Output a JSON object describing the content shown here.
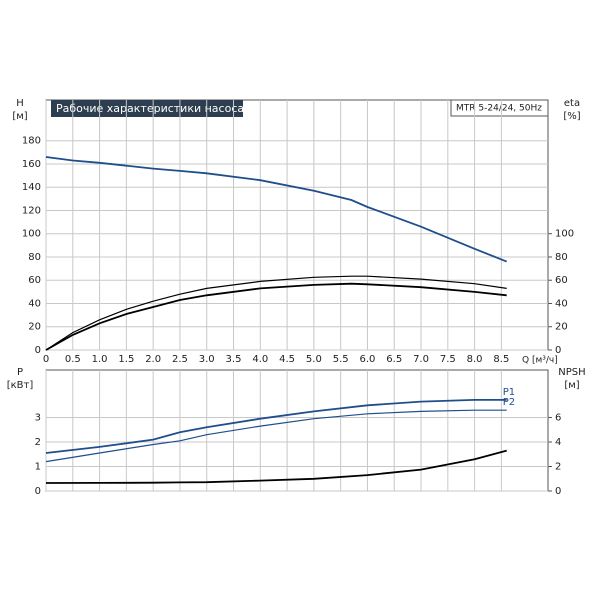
{
  "chart_data": [
    {
      "type": "line",
      "title": "Рабочие характеристики насоса",
      "annotation": "MTR 5-24/24, 50Hz",
      "y_label": "H",
      "y_unit": "[м]",
      "y2_label": "eta",
      "y2_unit": "[%]",
      "x_label": "Q [м³/ч]",
      "x": [
        0,
        0.5,
        1,
        1.5,
        2,
        2.5,
        3,
        4,
        5,
        5.7,
        6,
        7,
        8,
        8.6
      ],
      "xlim": [
        0,
        9.37
      ],
      "xticks": [
        0,
        0.5,
        {
          "value": 1,
          "label": "1.0"
        },
        1.5,
        {
          "value": 2,
          "label": "2.0"
        },
        2.5,
        {
          "value": 3,
          "label": "3.0"
        },
        3.5,
        {
          "value": 4,
          "label": "4.0"
        },
        4.5,
        {
          "value": 5,
          "label": "5.0"
        },
        5.5,
        {
          "value": 6,
          "label": "6.0"
        },
        6.5,
        {
          "value": 7,
          "label": "7.0"
        },
        7.5,
        {
          "value": 8,
          "label": "8.0"
        },
        8.5
      ],
      "ylim": [
        0,
        215
      ],
      "yticks": [
        0,
        20,
        40,
        60,
        80,
        100,
        120,
        140,
        160,
        180
      ],
      "y2lim": [
        0,
        215
      ],
      "y2ticks": [
        0,
        20,
        40,
        60,
        80,
        100
      ],
      "grid": true,
      "series": [
        {
          "color": "#1f4e8c",
          "values": [
            166,
            163,
            161,
            158.5,
            156,
            154,
            152,
            146,
            137,
            129,
            123,
            106,
            87,
            76
          ]
        },
        {
          "color": "#000000",
          "axis": "y2",
          "values": [
            0,
            15,
            26,
            35,
            42,
            48,
            53,
            59,
            62.5,
            63.5,
            63.5,
            61,
            57,
            53
          ]
        },
        {
          "color": "#000000",
          "axis": "y2",
          "values": [
            0,
            13,
            23,
            31,
            37,
            43,
            47,
            53,
            56,
            57,
            56.5,
            54,
            50,
            47
          ]
        }
      ]
    },
    {
      "type": "line",
      "y_label": "P",
      "y_unit": "[кВт]",
      "y2_label": "NPSH",
      "y2_unit": "[м]",
      "x": [
        0,
        1,
        2,
        2.5,
        3,
        4,
        5,
        6,
        7,
        8,
        8.6
      ],
      "xlim": [
        0,
        9.37
      ],
      "xticks": [
        0,
        0.5,
        1,
        1.5,
        2,
        2.5,
        3,
        3.5,
        4,
        4.5,
        5,
        5.5,
        6,
        6.5,
        7,
        7.5,
        8,
        8.5
      ],
      "show_xtick_labels": false,
      "ylim": [
        0,
        4.94
      ],
      "yticks": [
        0,
        1,
        2,
        3
      ],
      "y2lim": [
        0,
        9.88
      ],
      "y2ticks": [
        0,
        2,
        4,
        6
      ],
      "grid": true,
      "series": [
        {
          "name": "P1",
          "color": "#1f4e8c",
          "values": [
            1.55,
            1.8,
            2.1,
            2.4,
            2.6,
            2.95,
            3.25,
            3.5,
            3.65,
            3.72,
            3.72
          ]
        },
        {
          "name": "P2",
          "color": "#1f4e8c",
          "values": [
            1.2,
            1.55,
            1.9,
            2.05,
            2.3,
            2.65,
            2.95,
            3.15,
            3.25,
            3.3,
            3.3
          ]
        },
        {
          "color": "#000000",
          "axis": "y2",
          "values": [
            0.65,
            0.66,
            0.68,
            0.7,
            0.72,
            0.85,
            1.0,
            1.3,
            1.75,
            2.6,
            3.3
          ]
        }
      ]
    }
  ]
}
